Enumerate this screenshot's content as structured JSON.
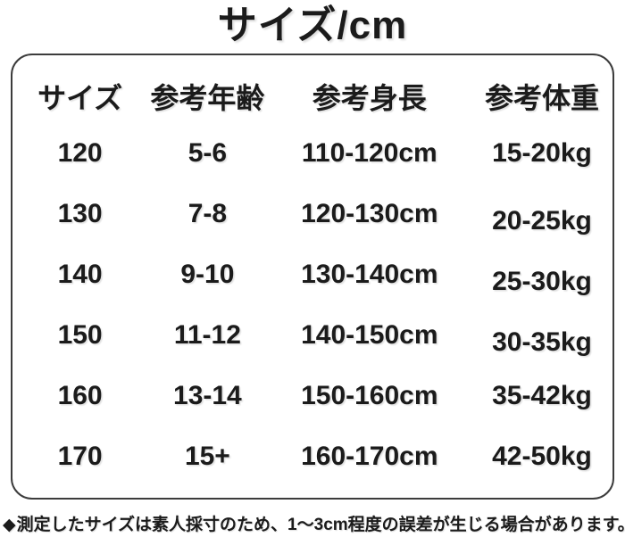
{
  "title": "サイズ/cm",
  "table": {
    "headers": [
      "サイズ",
      "参考年齢",
      "参考身長",
      "参考体重"
    ],
    "rows": [
      [
        "120",
        "5-6",
        "110-120cm",
        "15-20kg"
      ],
      [
        "130",
        "7-8",
        "120-130cm",
        "20-25kg"
      ],
      [
        "140",
        "9-10",
        "130-140cm",
        "25-30kg"
      ],
      [
        "150",
        "11-12",
        "140-150cm",
        "30-35kg"
      ],
      [
        "160",
        "13-14",
        "150-160cm",
        "35-42kg"
      ],
      [
        "170",
        "15+",
        "160-170cm",
        "42-50kg"
      ]
    ]
  },
  "footnote": {
    "bullet": "◆",
    "text": "測定したサイズは素人採寸のため、1〜3cm程度の誤差が生じる場合があります。"
  },
  "colors": {
    "text": "#1b1b1b",
    "border": "#3c3c3c",
    "background": "#ffffff"
  }
}
